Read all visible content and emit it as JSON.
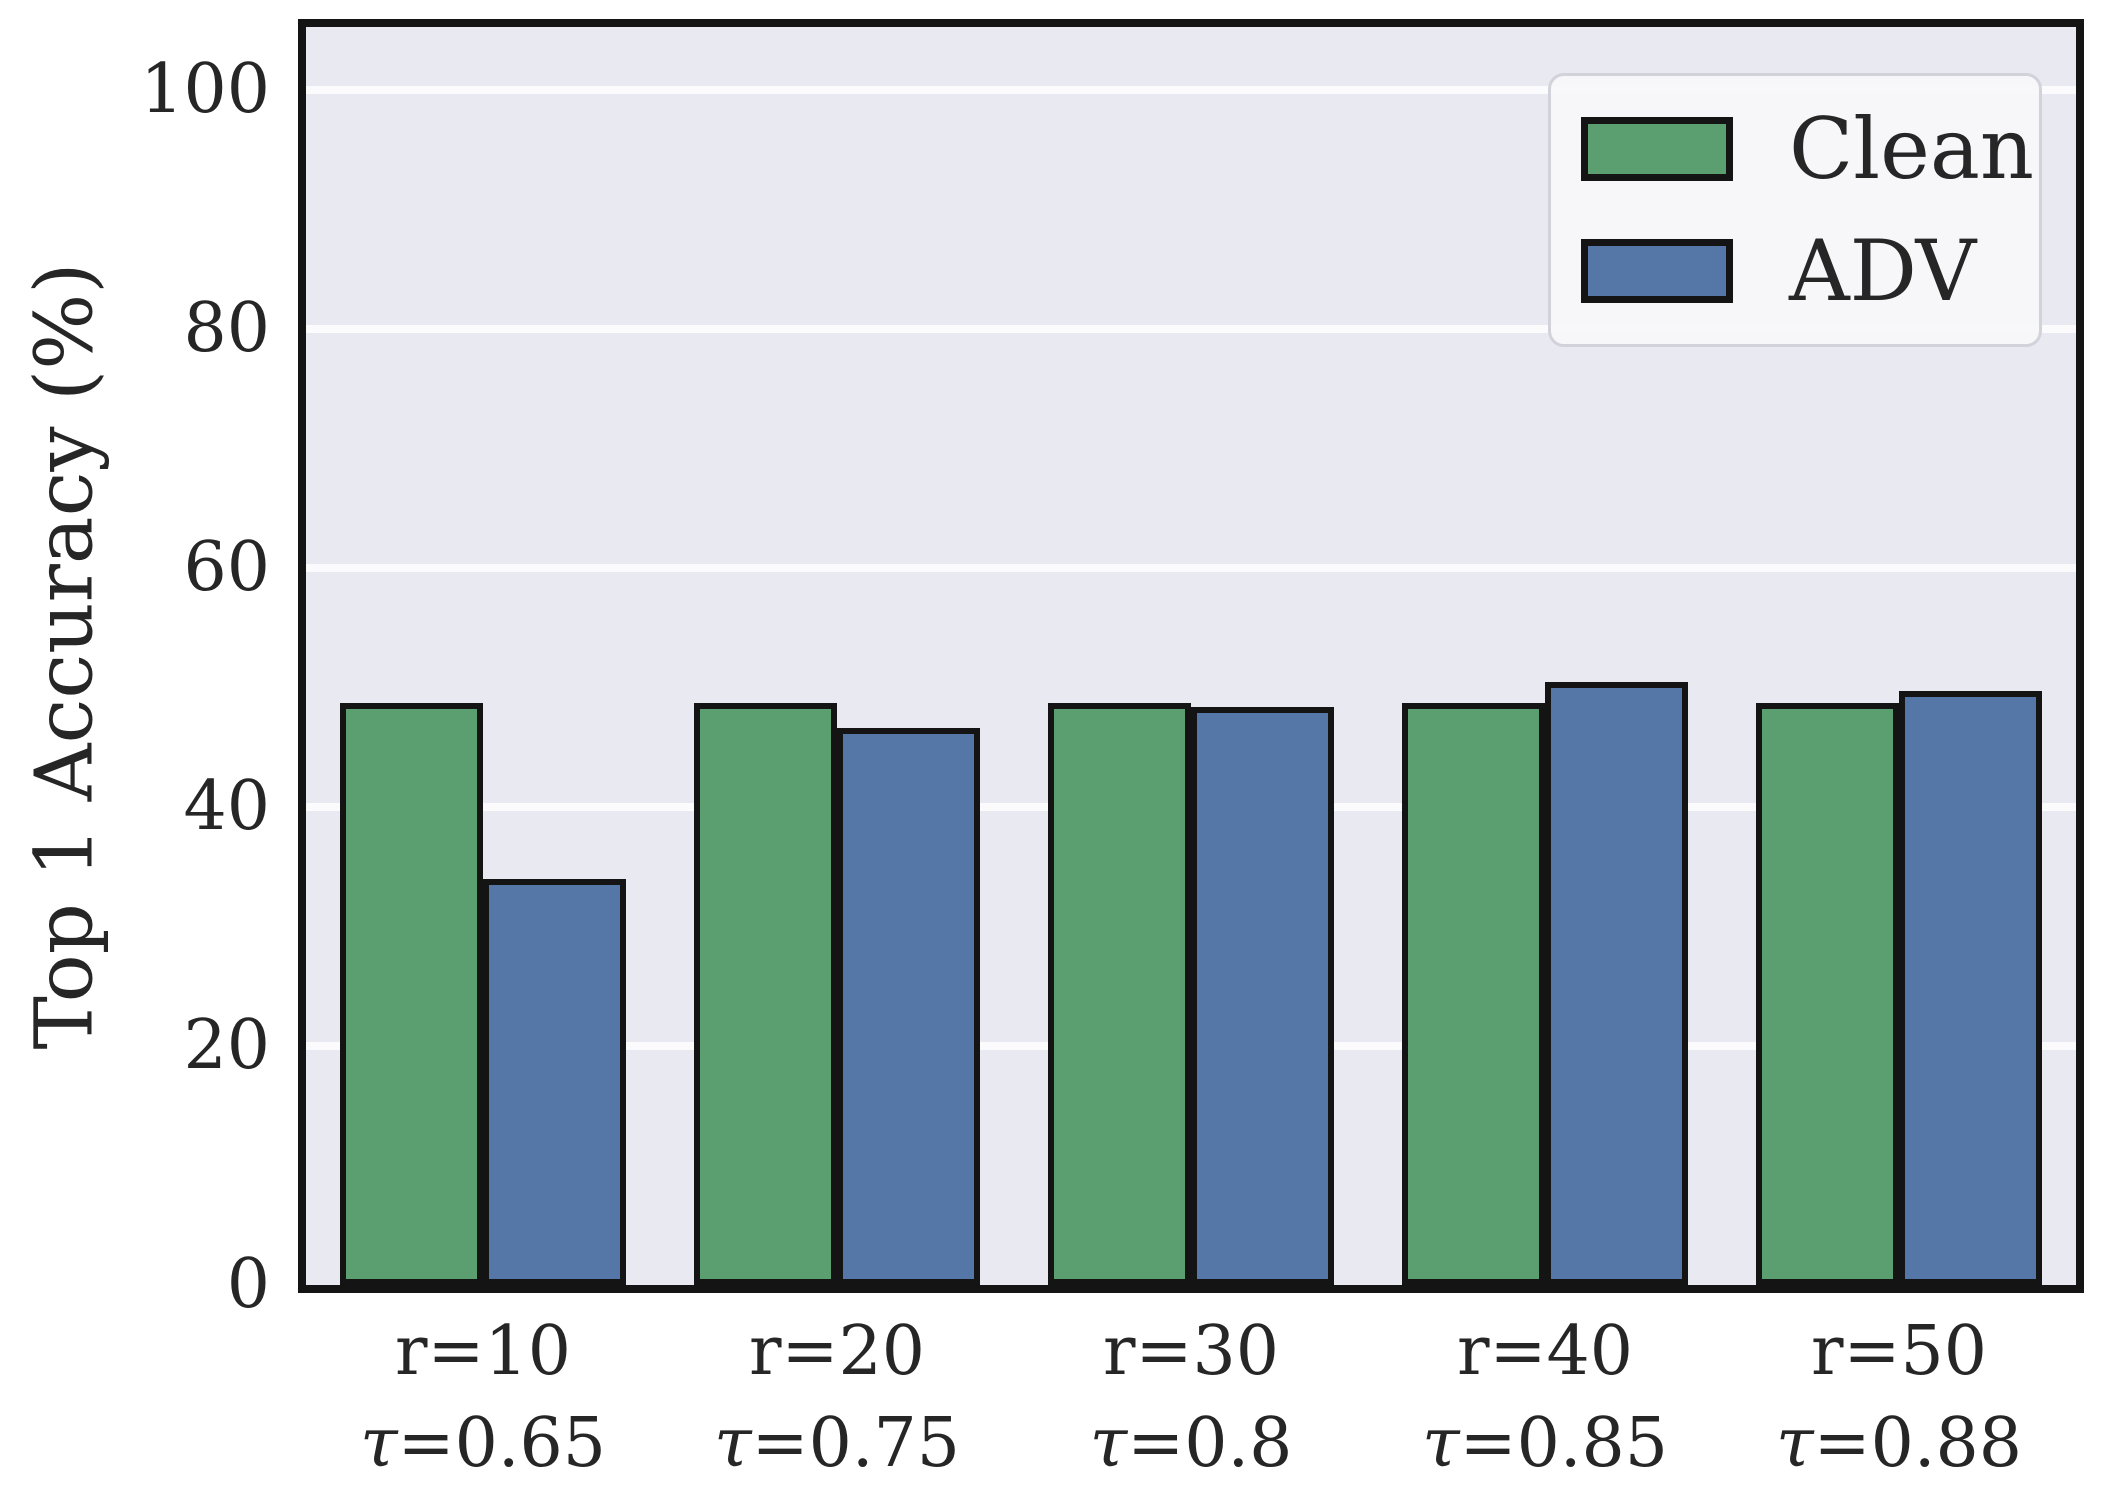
{
  "chart_data": {
    "type": "bar",
    "title": "",
    "xlabel": "",
    "ylabel": "Top 1 Accuracy (%)",
    "categories": [
      {
        "r": "r=10",
        "tau": "τ=0.65"
      },
      {
        "r": "r=20",
        "tau": "τ=0.75"
      },
      {
        "r": "r=30",
        "tau": "τ=0.8"
      },
      {
        "r": "r=40",
        "tau": "τ=0.85"
      },
      {
        "r": "r=50",
        "tau": "τ=0.88"
      }
    ],
    "series": [
      {
        "name": "Clean",
        "color": "#5b9e6f",
        "values": [
          48.7,
          48.7,
          48.7,
          48.7,
          48.7
        ]
      },
      {
        "name": "ADV",
        "color": "#5577a8",
        "values": [
          34.0,
          46.6,
          48.4,
          50.5,
          49.7
        ]
      }
    ],
    "yticks": [
      0,
      20,
      40,
      60,
      80,
      100
    ],
    "ylim": [
      0,
      105.3
    ],
    "grid": true,
    "legend_position": "upper right",
    "colors": {
      "plot_background": "#e9e9f1",
      "gridline": "#fbfbfd",
      "bar_edge": "#141414",
      "text": "#262626",
      "legend_background": "#f8f8fa",
      "legend_border": "#d2d2da"
    }
  }
}
